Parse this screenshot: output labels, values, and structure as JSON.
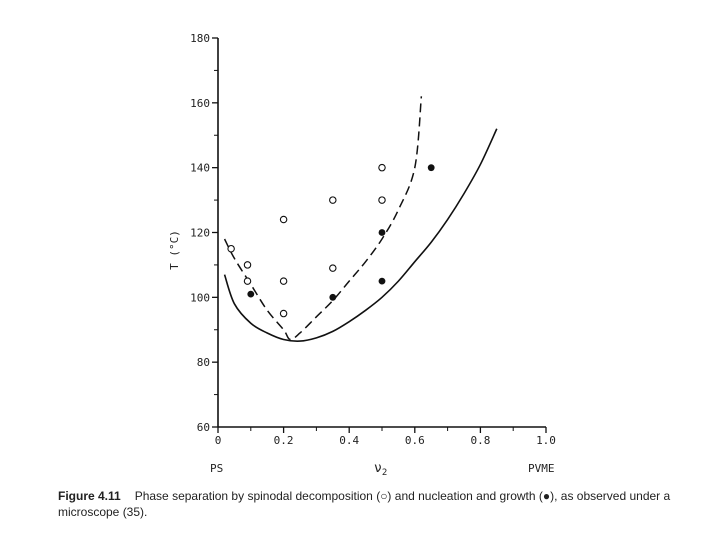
{
  "chart_data": {
    "type": "scatter",
    "ylabel": "T (°C)",
    "xlabel": "ν",
    "xlabel_sub": "2",
    "x_left_label": "PS",
    "x_right_label": "PVME",
    "xlim": [
      0,
      1.0
    ],
    "ylim": [
      60,
      180
    ],
    "x_ticks": [
      "0",
      "0.2",
      "0.4",
      "0.6",
      "0.8",
      "1.0"
    ],
    "x_tick_values": [
      0,
      0.2,
      0.4,
      0.6,
      0.8,
      1.0
    ],
    "y_ticks": [
      "60",
      "80",
      "100",
      "120",
      "140",
      "160",
      "180"
    ],
    "y_tick_values": [
      60,
      80,
      100,
      120,
      140,
      160,
      180
    ],
    "grid": false,
    "series": [
      {
        "style": "open-circle",
        "points": [
          [
            0.04,
            115
          ],
          [
            0.09,
            110
          ],
          [
            0.09,
            105
          ],
          [
            0.2,
            124
          ],
          [
            0.2,
            105
          ],
          [
            0.2,
            95
          ],
          [
            0.35,
            130
          ],
          [
            0.35,
            109
          ],
          [
            0.5,
            140
          ],
          [
            0.5,
            130
          ]
        ]
      },
      {
        "style": "filled-circle",
        "points": [
          [
            0.1,
            101
          ],
          [
            0.35,
            100
          ],
          [
            0.5,
            120
          ],
          [
            0.5,
            105
          ],
          [
            0.65,
            140
          ]
        ]
      },
      {
        "style": "solid-line",
        "points": [
          [
            0.02,
            107
          ],
          [
            0.05,
            98
          ],
          [
            0.1,
            92
          ],
          [
            0.15,
            89
          ],
          [
            0.2,
            87
          ],
          [
            0.25,
            86.5
          ],
          [
            0.3,
            87.5
          ],
          [
            0.35,
            89.5
          ],
          [
            0.4,
            92.5
          ],
          [
            0.45,
            96
          ],
          [
            0.5,
            100
          ],
          [
            0.55,
            105
          ],
          [
            0.6,
            111
          ],
          [
            0.65,
            117
          ],
          [
            0.7,
            124
          ],
          [
            0.75,
            132
          ],
          [
            0.8,
            141
          ],
          [
            0.85,
            152
          ]
        ]
      },
      {
        "style": "dashed-line",
        "points": [
          [
            0.02,
            118
          ],
          [
            0.05,
            112
          ],
          [
            0.1,
            104
          ],
          [
            0.15,
            96
          ],
          [
            0.2,
            90
          ],
          [
            0.22,
            87
          ],
          [
            0.25,
            89
          ],
          [
            0.3,
            94
          ],
          [
            0.35,
            99
          ],
          [
            0.4,
            105
          ],
          [
            0.45,
            111
          ],
          [
            0.5,
            118
          ],
          [
            0.55,
            127
          ],
          [
            0.6,
            140
          ],
          [
            0.62,
            162
          ]
        ]
      }
    ]
  },
  "caption": {
    "figure_label": "Figure 4.11",
    "text": "Phase separation by spinodal decomposition (○) and nucleation and growth (●), as observed under a microscope (35)."
  }
}
